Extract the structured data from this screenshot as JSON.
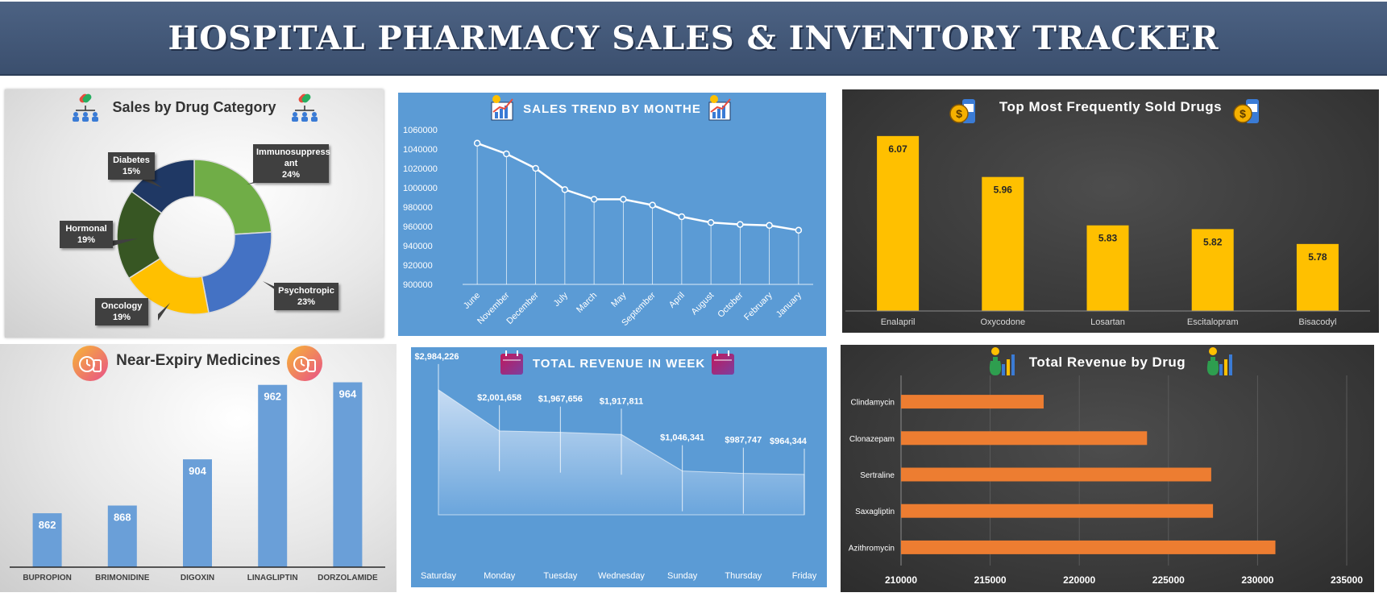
{
  "header": {
    "title": "HOSPITAL PHARMACY SALES & INVENTORY TRACKER"
  },
  "colors": {
    "banner": "#42577a",
    "blue_panel": "#5b9bd5",
    "gold_bar": "#ffc000",
    "orange_bar": "#ed7d31",
    "dark_panel": "#3a3a3a"
  },
  "chart_data": [
    {
      "id": "category",
      "type": "pie",
      "title": "Sales by Drug Category",
      "icon": "pills-network-icon",
      "categories": [
        "Immunosuppressant",
        "Psychotropic",
        "Oncology",
        "Hormonal",
        "Diabetes"
      ],
      "labels": [
        "Immunosuppress ant",
        "Psychotropic",
        "Oncology",
        "Hormonal",
        "Diabetes"
      ],
      "values": [
        24,
        23,
        19,
        19,
        15
      ],
      "value_labels": [
        "24%",
        "23%",
        "19%",
        "19%",
        "15%"
      ],
      "colors": [
        "#70ad47",
        "#4472c4",
        "#ffc000",
        "#375623",
        "#1f3864"
      ]
    },
    {
      "id": "trend",
      "type": "line",
      "title": "SALES TREND BY MONTHE",
      "icon": "growth-chart-icon",
      "categories": [
        "June",
        "November",
        "December",
        "July",
        "March",
        "May",
        "September",
        "April",
        "August",
        "October",
        "February",
        "January"
      ],
      "values": [
        1046000,
        1035000,
        1020000,
        998000,
        988000,
        988000,
        982000,
        970000,
        964000,
        962000,
        961000,
        956000
      ],
      "ylim": [
        900000,
        1060000
      ],
      "yticks": [
        "1060000",
        "1040000",
        "1020000",
        "1000000",
        "980000",
        "960000",
        "940000",
        "920000",
        "900000"
      ]
    },
    {
      "id": "topdrugs",
      "type": "bar",
      "title": "Top Most Frequently Sold Drugs",
      "icon": "money-bottle-icon",
      "categories": [
        "Enalapril",
        "Oxycodone",
        "Losartan",
        "Escitalopram",
        "Bisacodyl"
      ],
      "values": [
        6.07,
        5.96,
        5.83,
        5.82,
        5.78
      ],
      "value_labels": [
        "6.07",
        "5.96",
        "5.83",
        "5.82",
        "5.78"
      ],
      "ylim": [
        5.6,
        6.1
      ]
    },
    {
      "id": "expiry",
      "type": "bar",
      "title": "Near-Expiry Medicines",
      "icon": "clock-bottle-icon",
      "categories": [
        "BUPROPION",
        "BRIMONIDINE",
        "DIGOXIN",
        "LINAGLIPTIN",
        "DORZOLAMIDE"
      ],
      "values": [
        862,
        868,
        904,
        962,
        964
      ],
      "value_labels": [
        "862",
        "868",
        "904",
        "962",
        "964"
      ],
      "ylim": [
        820,
        975
      ]
    },
    {
      "id": "weekly",
      "type": "area",
      "title": "TOTAL REVENUE IN WEEK",
      "icon": "calendar-icon",
      "categories": [
        "Saturday",
        "Monday",
        "Tuesday",
        "Wednesday",
        "Sunday",
        "Thursday",
        "Friday"
      ],
      "values": [
        2984226,
        2001658,
        1967656,
        1917811,
        1046341,
        987747,
        964344
      ],
      "value_labels": [
        "$2,984,226",
        "$2,001,658",
        "$1,967,656",
        "$1,917,811",
        "$1,046,341",
        "$987,747",
        "$964,344"
      ],
      "ylim": [
        0,
        4000000
      ]
    },
    {
      "id": "revdrug",
      "type": "bar",
      "orientation": "horizontal",
      "title": "Total Revenue by Drug",
      "icon": "money-bag-chart-icon",
      "categories": [
        "Clindamycin",
        "Clonazepam",
        "Sertraline",
        "Saxagliptin",
        "Azithromycin"
      ],
      "values": [
        218000,
        223800,
        227400,
        227500,
        231000
      ],
      "xlim": [
        210000,
        235000
      ],
      "xticks": [
        "210000",
        "215000",
        "220000",
        "225000",
        "230000",
        "235000"
      ]
    }
  ]
}
